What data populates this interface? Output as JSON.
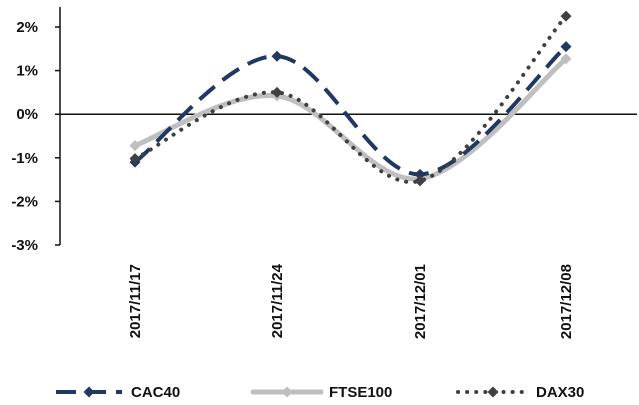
{
  "chart_data": {
    "type": "line",
    "categories": [
      "2017/11/17",
      "2017/11/24",
      "2017/12/01",
      "2017/12/08"
    ],
    "ylim": [
      -3,
      2
    ],
    "yticks": [
      2,
      1,
      0,
      -1,
      -2,
      -3
    ],
    "ytick_labels": [
      "2%",
      "1%",
      "0%",
      "-1%",
      "-2%",
      "-3%"
    ],
    "legend_position": "bottom",
    "grid": false,
    "series": [
      {
        "name": "CAC40",
        "values": [
          -1.1,
          1.33,
          -1.38,
          1.55
        ],
        "color": "#1f3864",
        "style": "dashed",
        "marker": "diamond"
      },
      {
        "name": "FTSE100",
        "values": [
          -0.72,
          0.42,
          -1.48,
          1.27
        ],
        "color": "#bfbfbf",
        "style": "solid",
        "marker": "diamond"
      },
      {
        "name": "DAX30",
        "values": [
          -1.02,
          0.5,
          -1.53,
          2.25
        ],
        "color": "#404040",
        "style": "dotted",
        "marker": "diamond"
      }
    ]
  }
}
